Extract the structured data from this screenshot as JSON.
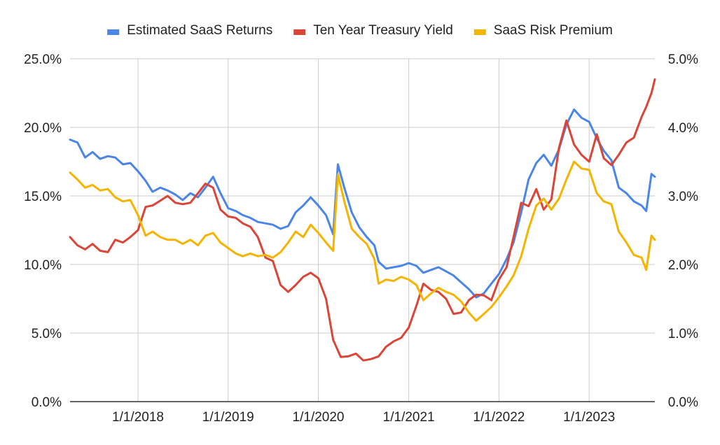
{
  "chart_data": {
    "type": "line",
    "title": "",
    "legend_position": "top",
    "grid": true,
    "x_axis": {
      "type": "date",
      "range": [
        "2017-04-01",
        "2023-09-24"
      ],
      "tick_values": [
        "2018-01-01",
        "2019-01-01",
        "2020-01-01",
        "2021-01-01",
        "2022-01-01",
        "2023-01-01"
      ],
      "tick_labels": [
        "1/1/2018",
        "1/1/2019",
        "1/1/2020",
        "1/1/2021",
        "1/1/2022",
        "1/1/2023"
      ]
    },
    "y_axis_left": {
      "range": [
        0,
        25
      ],
      "tick_values": [
        0,
        5,
        10,
        15,
        20,
        25
      ],
      "tick_labels": [
        "0.0%",
        "5.0%",
        "10.0%",
        "15.0%",
        "20.0%",
        "25.0%"
      ]
    },
    "y_axis_right": {
      "range": [
        0,
        5
      ],
      "tick_values": [
        0,
        1,
        2,
        3,
        4,
        5
      ],
      "tick_labels": [
        "0.0%",
        "1.0%",
        "2.0%",
        "3.0%",
        "4.0%",
        "5.0%"
      ]
    },
    "series": [
      {
        "name": "Estimated SaaS Returns",
        "color": "#4a86e8",
        "axis": "left",
        "points": [
          [
            "2017-04-01",
            19.1
          ],
          [
            "2017-05-01",
            18.9
          ],
          [
            "2017-06-01",
            17.8
          ],
          [
            "2017-07-01",
            18.2
          ],
          [
            "2017-08-01",
            17.7
          ],
          [
            "2017-09-01",
            17.9
          ],
          [
            "2017-10-01",
            17.8
          ],
          [
            "2017-11-01",
            17.3
          ],
          [
            "2017-12-01",
            17.4
          ],
          [
            "2018-01-01",
            16.8
          ],
          [
            "2018-02-01",
            16.1
          ],
          [
            "2018-03-01",
            15.3
          ],
          [
            "2018-04-01",
            15.6
          ],
          [
            "2018-05-01",
            15.4
          ],
          [
            "2018-06-01",
            15.1
          ],
          [
            "2018-07-01",
            14.7
          ],
          [
            "2018-08-01",
            15.2
          ],
          [
            "2018-09-01",
            14.9
          ],
          [
            "2018-10-01",
            15.6
          ],
          [
            "2018-11-01",
            16.4
          ],
          [
            "2018-12-01",
            15.2
          ],
          [
            "2019-01-01",
            14.1
          ],
          [
            "2019-02-01",
            13.9
          ],
          [
            "2019-03-01",
            13.6
          ],
          [
            "2019-04-01",
            13.4
          ],
          [
            "2019-05-01",
            13.1
          ],
          [
            "2019-06-01",
            13.0
          ],
          [
            "2019-07-01",
            12.9
          ],
          [
            "2019-08-01",
            12.6
          ],
          [
            "2019-09-01",
            12.8
          ],
          [
            "2019-10-01",
            13.8
          ],
          [
            "2019-11-01",
            14.3
          ],
          [
            "2019-12-01",
            14.9
          ],
          [
            "2020-01-01",
            14.3
          ],
          [
            "2020-02-01",
            13.6
          ],
          [
            "2020-03-01",
            12.2
          ],
          [
            "2020-03-20",
            17.3
          ],
          [
            "2020-04-15",
            15.6
          ],
          [
            "2020-05-15",
            13.8
          ],
          [
            "2020-06-15",
            12.7
          ],
          [
            "2020-07-15",
            12.0
          ],
          [
            "2020-08-15",
            11.4
          ],
          [
            "2020-09-01",
            10.2
          ],
          [
            "2020-10-01",
            9.7
          ],
          [
            "2020-11-01",
            9.8
          ],
          [
            "2020-12-01",
            9.9
          ],
          [
            "2021-01-01",
            10.1
          ],
          [
            "2021-02-01",
            9.9
          ],
          [
            "2021-03-01",
            9.4
          ],
          [
            "2021-04-01",
            9.6
          ],
          [
            "2021-05-01",
            9.8
          ],
          [
            "2021-06-01",
            9.5
          ],
          [
            "2021-07-01",
            9.2
          ],
          [
            "2021-08-01",
            8.7
          ],
          [
            "2021-09-01",
            8.2
          ],
          [
            "2021-10-01",
            7.6
          ],
          [
            "2021-11-01",
            7.9
          ],
          [
            "2021-12-01",
            8.6
          ],
          [
            "2022-01-01",
            9.3
          ],
          [
            "2022-02-01",
            10.4
          ],
          [
            "2022-03-01",
            11.6
          ],
          [
            "2022-04-01",
            13.8
          ],
          [
            "2022-05-01",
            16.2
          ],
          [
            "2022-06-01",
            17.4
          ],
          [
            "2022-07-01",
            18.0
          ],
          [
            "2022-08-01",
            17.2
          ],
          [
            "2022-09-01",
            18.4
          ],
          [
            "2022-10-01",
            20.2
          ],
          [
            "2022-11-01",
            21.3
          ],
          [
            "2022-12-01",
            20.7
          ],
          [
            "2023-01-01",
            20.4
          ],
          [
            "2023-02-01",
            19.2
          ],
          [
            "2023-03-01",
            18.3
          ],
          [
            "2023-04-01",
            17.6
          ],
          [
            "2023-05-01",
            15.6
          ],
          [
            "2023-06-01",
            15.2
          ],
          [
            "2023-07-01",
            14.6
          ],
          [
            "2023-08-01",
            14.3
          ],
          [
            "2023-08-20",
            13.9
          ],
          [
            "2023-09-10",
            16.6
          ],
          [
            "2023-09-24",
            16.4
          ]
        ]
      },
      {
        "name": "Ten Year Treasury Yield",
        "color": "#db4437",
        "axis": "right",
        "points": [
          [
            "2017-04-01",
            2.4
          ],
          [
            "2017-05-01",
            2.28
          ],
          [
            "2017-06-01",
            2.22
          ],
          [
            "2017-07-01",
            2.3
          ],
          [
            "2017-08-01",
            2.2
          ],
          [
            "2017-09-01",
            2.18
          ],
          [
            "2017-10-01",
            2.36
          ],
          [
            "2017-11-01",
            2.32
          ],
          [
            "2017-12-01",
            2.4
          ],
          [
            "2018-01-01",
            2.5
          ],
          [
            "2018-02-01",
            2.84
          ],
          [
            "2018-03-01",
            2.86
          ],
          [
            "2018-04-01",
            2.93
          ],
          [
            "2018-05-01",
            3.0
          ],
          [
            "2018-06-01",
            2.9
          ],
          [
            "2018-07-01",
            2.88
          ],
          [
            "2018-08-01",
            2.9
          ],
          [
            "2018-09-01",
            3.04
          ],
          [
            "2018-10-01",
            3.18
          ],
          [
            "2018-11-01",
            3.12
          ],
          [
            "2018-12-01",
            2.8
          ],
          [
            "2019-01-01",
            2.7
          ],
          [
            "2019-02-01",
            2.68
          ],
          [
            "2019-03-01",
            2.6
          ],
          [
            "2019-04-01",
            2.55
          ],
          [
            "2019-05-01",
            2.4
          ],
          [
            "2019-06-01",
            2.1
          ],
          [
            "2019-07-01",
            2.05
          ],
          [
            "2019-08-01",
            1.7
          ],
          [
            "2019-09-01",
            1.6
          ],
          [
            "2019-10-01",
            1.7
          ],
          [
            "2019-11-01",
            1.82
          ],
          [
            "2019-12-01",
            1.88
          ],
          [
            "2020-01-01",
            1.8
          ],
          [
            "2020-02-01",
            1.5
          ],
          [
            "2020-03-01",
            0.9
          ],
          [
            "2020-04-01",
            0.65
          ],
          [
            "2020-05-01",
            0.66
          ],
          [
            "2020-06-01",
            0.7
          ],
          [
            "2020-07-01",
            0.6
          ],
          [
            "2020-08-01",
            0.62
          ],
          [
            "2020-09-01",
            0.66
          ],
          [
            "2020-10-01",
            0.8
          ],
          [
            "2020-11-01",
            0.88
          ],
          [
            "2020-12-01",
            0.93
          ],
          [
            "2021-01-01",
            1.08
          ],
          [
            "2021-02-01",
            1.4
          ],
          [
            "2021-03-01",
            1.72
          ],
          [
            "2021-04-01",
            1.63
          ],
          [
            "2021-05-01",
            1.6
          ],
          [
            "2021-06-01",
            1.5
          ],
          [
            "2021-07-01",
            1.28
          ],
          [
            "2021-08-01",
            1.3
          ],
          [
            "2021-09-01",
            1.48
          ],
          [
            "2021-10-01",
            1.56
          ],
          [
            "2021-11-01",
            1.55
          ],
          [
            "2021-12-01",
            1.48
          ],
          [
            "2022-01-01",
            1.78
          ],
          [
            "2022-02-01",
            1.96
          ],
          [
            "2022-03-01",
            2.4
          ],
          [
            "2022-04-01",
            2.9
          ],
          [
            "2022-05-01",
            2.85
          ],
          [
            "2022-06-01",
            3.1
          ],
          [
            "2022-07-01",
            2.8
          ],
          [
            "2022-08-01",
            2.95
          ],
          [
            "2022-09-01",
            3.7
          ],
          [
            "2022-10-01",
            4.1
          ],
          [
            "2022-11-01",
            3.75
          ],
          [
            "2022-12-01",
            3.6
          ],
          [
            "2023-01-01",
            3.5
          ],
          [
            "2023-02-01",
            3.9
          ],
          [
            "2023-03-01",
            3.55
          ],
          [
            "2023-04-01",
            3.45
          ],
          [
            "2023-05-01",
            3.6
          ],
          [
            "2023-06-01",
            3.78
          ],
          [
            "2023-07-01",
            3.85
          ],
          [
            "2023-08-01",
            4.15
          ],
          [
            "2023-08-20",
            4.3
          ],
          [
            "2023-09-10",
            4.5
          ],
          [
            "2023-09-24",
            4.7
          ]
        ]
      },
      {
        "name": "SaaS Risk Premium",
        "color": "#f4b400",
        "axis": "left",
        "points": [
          [
            "2017-04-01",
            16.7
          ],
          [
            "2017-05-01",
            16.2
          ],
          [
            "2017-06-01",
            15.6
          ],
          [
            "2017-07-01",
            15.8
          ],
          [
            "2017-08-01",
            15.4
          ],
          [
            "2017-09-01",
            15.5
          ],
          [
            "2017-10-01",
            14.9
          ],
          [
            "2017-11-01",
            14.6
          ],
          [
            "2017-12-01",
            14.7
          ],
          [
            "2018-01-01",
            13.6
          ],
          [
            "2018-02-01",
            12.1
          ],
          [
            "2018-03-01",
            12.4
          ],
          [
            "2018-04-01",
            12.0
          ],
          [
            "2018-05-01",
            11.8
          ],
          [
            "2018-06-01",
            11.8
          ],
          [
            "2018-07-01",
            11.5
          ],
          [
            "2018-08-01",
            11.8
          ],
          [
            "2018-09-01",
            11.4
          ],
          [
            "2018-10-01",
            12.1
          ],
          [
            "2018-11-01",
            12.3
          ],
          [
            "2018-12-01",
            11.6
          ],
          [
            "2019-01-01",
            11.2
          ],
          [
            "2019-02-01",
            10.8
          ],
          [
            "2019-03-01",
            10.6
          ],
          [
            "2019-04-01",
            10.8
          ],
          [
            "2019-05-01",
            10.6
          ],
          [
            "2019-06-01",
            10.7
          ],
          [
            "2019-07-01",
            10.5
          ],
          [
            "2019-08-01",
            10.9
          ],
          [
            "2019-09-01",
            11.6
          ],
          [
            "2019-10-01",
            12.4
          ],
          [
            "2019-11-01",
            12.0
          ],
          [
            "2019-12-01",
            12.9
          ],
          [
            "2020-01-01",
            12.3
          ],
          [
            "2020-02-01",
            11.6
          ],
          [
            "2020-03-01",
            11.0
          ],
          [
            "2020-03-20",
            16.6
          ],
          [
            "2020-04-15",
            14.6
          ],
          [
            "2020-05-15",
            12.6
          ],
          [
            "2020-06-15",
            12.0
          ],
          [
            "2020-07-15",
            11.5
          ],
          [
            "2020-08-15",
            10.4
          ],
          [
            "2020-09-01",
            8.6
          ],
          [
            "2020-10-01",
            8.9
          ],
          [
            "2020-11-01",
            8.8
          ],
          [
            "2020-12-01",
            9.1
          ],
          [
            "2021-01-01",
            8.9
          ],
          [
            "2021-02-01",
            8.5
          ],
          [
            "2021-03-01",
            7.4
          ],
          [
            "2021-04-01",
            7.9
          ],
          [
            "2021-05-01",
            8.3
          ],
          [
            "2021-06-01",
            8.0
          ],
          [
            "2021-07-01",
            7.8
          ],
          [
            "2021-08-01",
            7.3
          ],
          [
            "2021-09-01",
            6.5
          ],
          [
            "2021-10-01",
            5.9
          ],
          [
            "2021-11-01",
            6.4
          ],
          [
            "2021-12-01",
            6.9
          ],
          [
            "2022-01-01",
            7.6
          ],
          [
            "2022-02-01",
            8.4
          ],
          [
            "2022-03-01",
            9.2
          ],
          [
            "2022-04-01",
            10.6
          ],
          [
            "2022-05-01",
            12.6
          ],
          [
            "2022-06-01",
            14.3
          ],
          [
            "2022-07-01",
            14.8
          ],
          [
            "2022-08-01",
            14.0
          ],
          [
            "2022-09-01",
            14.8
          ],
          [
            "2022-10-01",
            16.2
          ],
          [
            "2022-11-01",
            17.5
          ],
          [
            "2022-12-01",
            17.0
          ],
          [
            "2023-01-01",
            16.9
          ],
          [
            "2023-02-01",
            15.2
          ],
          [
            "2023-03-01",
            14.6
          ],
          [
            "2023-04-01",
            14.4
          ],
          [
            "2023-05-01",
            12.4
          ],
          [
            "2023-06-01",
            11.6
          ],
          [
            "2023-07-01",
            10.7
          ],
          [
            "2023-08-01",
            10.5
          ],
          [
            "2023-08-20",
            9.6
          ],
          [
            "2023-09-10",
            12.1
          ],
          [
            "2023-09-24",
            11.8
          ]
        ]
      }
    ]
  }
}
